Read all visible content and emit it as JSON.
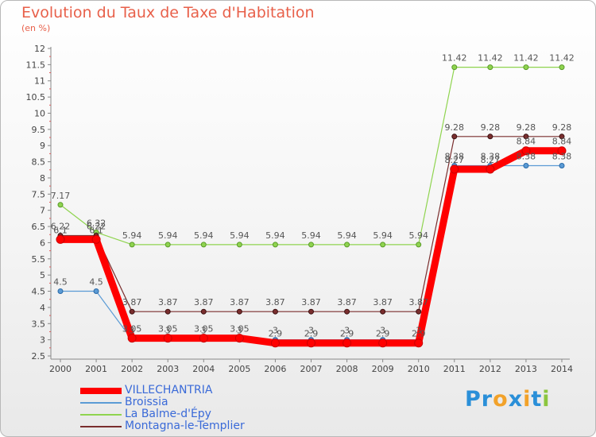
{
  "chart_data": {
    "type": "line",
    "title": "Evolution du Taux de Taxe d'Habitation",
    "subtitle": "(en %)",
    "xlabel": "",
    "ylabel": "",
    "ylim": [
      2.5,
      12
    ],
    "y_ticks": [
      "2.5",
      "3",
      "3.5",
      "4",
      "4.5",
      "5",
      "5.5",
      "6",
      "6.5",
      "7",
      "7.5",
      "8",
      "8.5",
      "9",
      "9.5",
      "10",
      "10.5",
      "11",
      "11.5",
      "12"
    ],
    "x": [
      "2000",
      "2001",
      "2002",
      "2003",
      "2004",
      "2005",
      "2006",
      "2007",
      "2008",
      "2009",
      "2010",
      "2011",
      "2012",
      "2013",
      "2014"
    ],
    "grid": false,
    "series": [
      {
        "name": "VILLECHANTRIA",
        "color": "#ff0000",
        "values": [
          6.1,
          6.1,
          3.05,
          3.05,
          3.05,
          3.05,
          2.9,
          2.9,
          2.9,
          2.9,
          2.9,
          8.27,
          8.27,
          8.84,
          8.84
        ],
        "labels": [
          "6.1",
          "6.1",
          "3.05",
          "3.05",
          "3.05",
          "3.05",
          "2.9",
          "2.9",
          "2.9",
          "2.9",
          "2.9",
          "8.27",
          "8.27",
          "8.84",
          "8.84"
        ]
      },
      {
        "name": "Broissia",
        "color": "#5b9bd5",
        "values": [
          4.5,
          4.5,
          3,
          3,
          3,
          3,
          3,
          3,
          3,
          3,
          3,
          8.38,
          8.38,
          8.38,
          8.38
        ],
        "labels": [
          "4.5",
          "4.5",
          "3",
          "3",
          "3",
          "3",
          "3",
          "3",
          "3",
          "3",
          "3",
          "8.38",
          "8.38",
          "8.38",
          "8.38"
        ]
      },
      {
        "name": "La Balme-d'Épy",
        "color": "#8fd44f",
        "values": [
          7.17,
          6.32,
          5.94,
          5.94,
          5.94,
          5.94,
          5.94,
          5.94,
          5.94,
          5.94,
          5.94,
          11.42,
          11.42,
          11.42,
          11.42
        ],
        "labels": [
          "7.17",
          "6.32",
          "5.94",
          "5.94",
          "5.94",
          "5.94",
          "5.94",
          "5.94",
          "5.94",
          "5.94",
          "5.94",
          "11.42",
          "11.42",
          "11.42",
          "11.42"
        ]
      },
      {
        "name": "Montagna-le-Templier",
        "color": "#7a2e2e",
        "values": [
          6.22,
          6.22,
          3.87,
          3.87,
          3.87,
          3.87,
          3.87,
          3.87,
          3.87,
          3.87,
          3.87,
          9.28,
          9.28,
          9.28,
          9.28
        ],
        "labels": [
          "6.22",
          "6.22",
          "3.87",
          "3.87",
          "3.87",
          "3.87",
          "3.87",
          "3.87",
          "3.87",
          "3.87",
          "3.87",
          "9.28",
          "9.28",
          "9.28",
          "9.28"
        ]
      }
    ]
  },
  "brand": {
    "letters": [
      "P",
      "r",
      "o",
      "x",
      "i",
      "t",
      "i"
    ],
    "colors": [
      "#2a8fd8",
      "#2a8fd8",
      "#f2a22a",
      "#2a8fd8",
      "#f2a22a",
      "#2a8fd8",
      "#8cc63f"
    ]
  }
}
